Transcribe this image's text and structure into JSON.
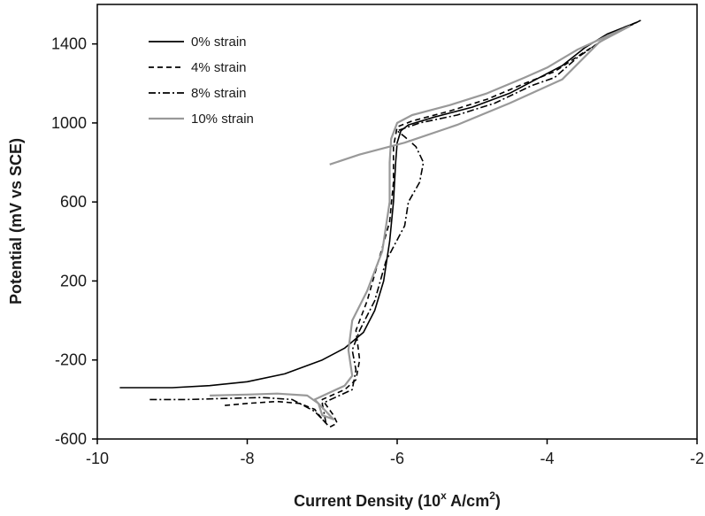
{
  "chart_data": {
    "type": "line",
    "title": "",
    "xlabel": "Current Density (10",
    "xlabel_sup": "x",
    "xlabel_unit": " A/cm",
    "xlabel_unit_sup": "2",
    "xlabel_close": ")",
    "ylabel": "Potential (mV vs SCE)",
    "xlim": [
      -10,
      -2
    ],
    "ylim": [
      -600,
      1600
    ],
    "x_ticks": [
      -10,
      -8,
      -6,
      -4,
      -2
    ],
    "y_ticks": [
      -600,
      -200,
      200,
      600,
      1000,
      1400
    ],
    "grid": false,
    "legend_position": "top-left",
    "series": [
      {
        "name": "0% strain",
        "color": "#000000",
        "dash": "solid",
        "points": [
          [
            -9.7,
            -340
          ],
          [
            -9.0,
            -340
          ],
          [
            -8.5,
            -330
          ],
          [
            -8.0,
            -310
          ],
          [
            -7.5,
            -270
          ],
          [
            -7.0,
            -200
          ],
          [
            -6.7,
            -140
          ],
          [
            -6.45,
            -60
          ],
          [
            -6.3,
            50
          ],
          [
            -6.18,
            200
          ],
          [
            -6.1,
            400
          ],
          [
            -6.05,
            600
          ],
          [
            -6.02,
            800
          ],
          [
            -6.0,
            900
          ],
          [
            -5.95,
            960
          ],
          [
            -5.85,
            990
          ],
          [
            -5.5,
            1030
          ],
          [
            -5.0,
            1080
          ],
          [
            -4.5,
            1150
          ],
          [
            -4.1,
            1230
          ],
          [
            -3.8,
            1290
          ],
          [
            -3.5,
            1380
          ],
          [
            -3.2,
            1450
          ],
          [
            -2.8,
            1510
          ],
          [
            -2.75,
            1520
          ]
        ]
      },
      {
        "name": "4% strain",
        "color": "#000000",
        "dash": "6,4",
        "points": [
          [
            -8.3,
            -430
          ],
          [
            -8.0,
            -420
          ],
          [
            -7.6,
            -410
          ],
          [
            -7.3,
            -420
          ],
          [
            -7.1,
            -450
          ],
          [
            -7.0,
            -500
          ],
          [
            -6.9,
            -540
          ],
          [
            -6.8,
            -520
          ],
          [
            -6.85,
            -480
          ],
          [
            -7.0,
            -400
          ],
          [
            -6.7,
            -350
          ],
          [
            -6.55,
            -300
          ],
          [
            -6.5,
            -200
          ],
          [
            -6.55,
            -50
          ],
          [
            -6.4,
            100
          ],
          [
            -6.25,
            300
          ],
          [
            -6.1,
            500
          ],
          [
            -6.05,
            700
          ],
          [
            -6.05,
            880
          ],
          [
            -6.0,
            980
          ],
          [
            -5.8,
            1010
          ],
          [
            -5.3,
            1060
          ],
          [
            -4.8,
            1120
          ],
          [
            -4.3,
            1200
          ],
          [
            -3.9,
            1260
          ],
          [
            -3.5,
            1360
          ],
          [
            -3.0,
            1480
          ],
          [
            -2.8,
            1510
          ]
        ]
      },
      {
        "name": "8% strain",
        "color": "#000000",
        "dash": "8,3,2,3",
        "points": [
          [
            -9.3,
            -400
          ],
          [
            -8.8,
            -400
          ],
          [
            -8.3,
            -395
          ],
          [
            -7.8,
            -390
          ],
          [
            -7.4,
            -400
          ],
          [
            -7.1,
            -460
          ],
          [
            -6.95,
            -520
          ],
          [
            -7.0,
            -420
          ],
          [
            -6.6,
            -350
          ],
          [
            -6.55,
            -250
          ],
          [
            -6.6,
            -150
          ],
          [
            -6.5,
            -50
          ],
          [
            -6.3,
            100
          ],
          [
            -6.15,
            300
          ],
          [
            -5.9,
            480
          ],
          [
            -5.85,
            600
          ],
          [
            -5.7,
            700
          ],
          [
            -5.65,
            800
          ],
          [
            -5.75,
            880
          ],
          [
            -5.9,
            930
          ],
          [
            -6.0,
            960
          ],
          [
            -5.7,
            1000
          ],
          [
            -5.2,
            1040
          ],
          [
            -4.7,
            1100
          ],
          [
            -4.2,
            1190
          ],
          [
            -3.9,
            1230
          ],
          [
            -3.6,
            1330
          ],
          [
            -3.1,
            1460
          ],
          [
            -2.85,
            1500
          ]
        ]
      },
      {
        "name": "10% strain",
        "color": "#999999",
        "dash": "solid",
        "points": [
          [
            -8.5,
            -380
          ],
          [
            -8.0,
            -375
          ],
          [
            -7.6,
            -370
          ],
          [
            -7.2,
            -380
          ],
          [
            -7.05,
            -420
          ],
          [
            -7.0,
            -480
          ],
          [
            -6.85,
            -500
          ],
          [
            -7.1,
            -400
          ],
          [
            -6.7,
            -330
          ],
          [
            -6.6,
            -280
          ],
          [
            -6.65,
            -150
          ],
          [
            -6.6,
            0
          ],
          [
            -6.4,
            150
          ],
          [
            -6.2,
            350
          ],
          [
            -6.1,
            600
          ],
          [
            -6.1,
            800
          ],
          [
            -6.08,
            920
          ],
          [
            -6.0,
            1000
          ],
          [
            -5.8,
            1040
          ],
          [
            -5.3,
            1090
          ],
          [
            -4.8,
            1150
          ],
          [
            -4.3,
            1230
          ],
          [
            -4.0,
            1280
          ],
          [
            -3.6,
            1370
          ],
          [
            -3.2,
            1440
          ],
          [
            -2.9,
            1490
          ],
          [
            -3.3,
            1410
          ],
          [
            -3.8,
            1220
          ],
          [
            -4.5,
            1100
          ],
          [
            -5.2,
            990
          ],
          [
            -5.9,
            900
          ],
          [
            -6.5,
            840
          ],
          [
            -6.9,
            790
          ]
        ]
      }
    ]
  }
}
